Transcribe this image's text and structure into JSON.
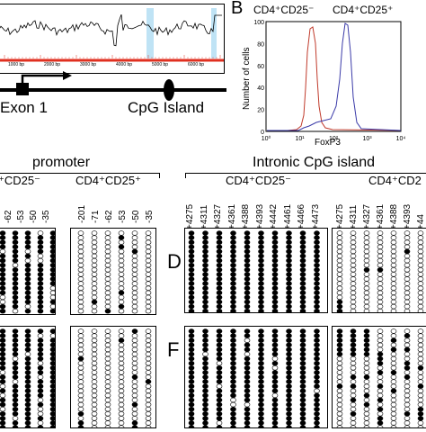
{
  "panels": {
    "b_letter": "B",
    "d_letter": "D",
    "f_letter": "F"
  },
  "panel_a": {
    "bp_ticks": [
      "1000 bp",
      "2000 bp",
      "3000 bp",
      "4000 bp",
      "5000 bp",
      "6000 bp"
    ],
    "exon_label": "Exon 1",
    "cpg_label": "CpG Island",
    "colors": {
      "trace": "#000000",
      "baseline": "#e03020",
      "highlight": "#bfe3f5"
    }
  },
  "panel_b": {
    "ylabel": "Number of cells",
    "xlabel": "FoxP3",
    "legend_left": "CD4⁺CD25⁻",
    "legend_right": "CD4⁺CD25⁺",
    "x_ticks": [
      "10⁰",
      "10¹",
      "10²",
      "10³",
      "10⁴"
    ],
    "y_ticks": [
      "100",
      "80",
      "60",
      "40",
      "20",
      "0"
    ],
    "colors": {
      "cd25neg": "#c03a2b",
      "cd25pos": "#3a3aa8"
    }
  },
  "methylation": {
    "promoter_header": "promoter",
    "intronic_header": "Intronic CpG island",
    "promoter_left_label": "⁺CD25⁻",
    "promoter_right_label": "CD4⁺CD25⁺",
    "intronic_left_label": "CD4⁺CD25⁻",
    "intronic_right_label": "CD4⁺CD2",
    "promoter_left_positions": [
      "-62",
      "-53",
      "-50",
      "-35"
    ],
    "promoter_right_positions": [
      "-201",
      "-71",
      "-62",
      "-53",
      "-50",
      "-35"
    ],
    "intronic_left_positions": [
      "+4275",
      "+4311",
      "+4327",
      "+4361",
      "+4388",
      "+4393",
      "+4442",
      "+4461",
      "+4466",
      "+4473"
    ],
    "intronic_right_positions": [
      "+4275",
      "+4311",
      "+4327",
      "+4361",
      "+4388",
      "+4393",
      "+44"
    ]
  }
}
